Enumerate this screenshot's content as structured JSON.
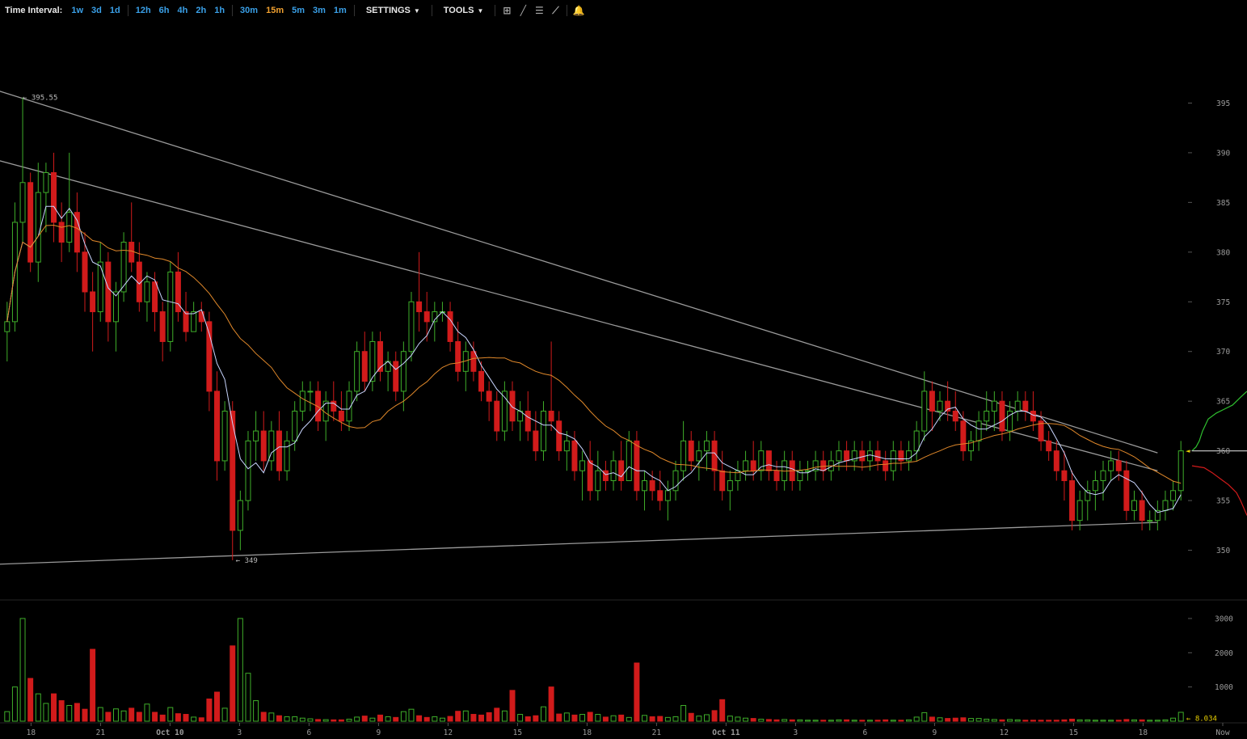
{
  "toolbar": {
    "time_interval_label": "Time Interval:",
    "intervals": [
      "1w",
      "3d",
      "1d",
      "12h",
      "6h",
      "4h",
      "2h",
      "1h",
      "30m",
      "15m",
      "5m",
      "3m",
      "1m"
    ],
    "active_interval": "15m",
    "settings_label": "SETTINGS",
    "tools_label": "TOOLS",
    "icons": [
      "crosshair-icon",
      "line-tool-icon",
      "hlines-icon",
      "fan-tool-icon",
      "bell-icon"
    ]
  },
  "colors": {
    "up": "#3fae2a",
    "down": "#d11b1b",
    "sma_fast": "#c9d6ff",
    "sma_slow": "#e0882a",
    "trendline": "#9a9a9a",
    "axis_text": "#9b9b9b",
    "depth_bid": "#2fbf2f",
    "depth_ask": "#d11b1b"
  },
  "chart_data": {
    "type": "candlestick",
    "price_axis": {
      "ticks": [
        395,
        390,
        385,
        380,
        375,
        370,
        365,
        360,
        355,
        350
      ],
      "ylim": [
        345,
        400
      ]
    },
    "volume_axis": {
      "ticks": [
        3000,
        2000,
        1000
      ],
      "ylim": [
        0,
        3400
      ]
    },
    "x_ticks": [
      "18",
      "21",
      "Oct 10",
      "3",
      "6",
      "9",
      "12",
      "15",
      "18",
      "21",
      "Oct 11",
      "3",
      "6",
      "9",
      "12",
      "15",
      "18",
      "Now"
    ],
    "annotations": {
      "high": "395.55",
      "low": "349",
      "last_price": "360",
      "last_volume": "8.034"
    },
    "candles": [
      [
        372,
        375,
        369,
        373,
        280
      ],
      [
        373,
        385,
        372,
        383,
        1000
      ],
      [
        383,
        395.55,
        381,
        387,
        3000
      ],
      [
        387,
        388,
        378,
        379,
        1250
      ],
      [
        379,
        389,
        377,
        386,
        800
      ],
      [
        386,
        389,
        382,
        388,
        520
      ],
      [
        388,
        390,
        381,
        383,
        800
      ],
      [
        383,
        385,
        379,
        381,
        600
      ],
      [
        381,
        390,
        380,
        384,
        460
      ],
      [
        384,
        386,
        378,
        380,
        520
      ],
      [
        380,
        382,
        374,
        376,
        350
      ],
      [
        376,
        378,
        370,
        374,
        2100
      ],
      [
        374,
        381,
        373,
        379,
        400
      ],
      [
        379,
        380,
        371,
        373,
        260
      ],
      [
        373,
        377,
        370,
        376,
        360
      ],
      [
        376,
        382,
        375,
        381,
        300
      ],
      [
        381,
        385,
        378,
        379,
        380
      ],
      [
        379,
        381,
        374,
        375,
        260
      ],
      [
        375,
        378,
        373,
        377,
        500
      ],
      [
        377,
        378,
        372,
        374,
        260
      ],
      [
        374,
        375,
        369,
        371,
        180
      ],
      [
        371,
        379,
        370,
        378,
        400
      ],
      [
        378,
        380,
        373,
        374,
        220
      ],
      [
        374,
        376,
        371,
        372,
        200
      ],
      [
        372,
        375,
        372,
        374,
        120
      ],
      [
        374,
        375,
        372,
        373,
        100
      ],
      [
        373,
        374,
        364,
        366,
        650
      ],
      [
        366,
        368,
        357,
        359,
        850
      ],
      [
        359,
        365,
        358,
        364,
        380
      ],
      [
        364,
        365,
        349,
        352,
        2200
      ],
      [
        352,
        356,
        350,
        355,
        3000
      ],
      [
        355,
        362,
        354,
        361,
        1400
      ],
      [
        361,
        364,
        359,
        362,
        600
      ],
      [
        362,
        364,
        358,
        359,
        260
      ],
      [
        359,
        363,
        358,
        362,
        240
      ],
      [
        362,
        364,
        357,
        358,
        160
      ],
      [
        358,
        362,
        357,
        361,
        130
      ],
      [
        361,
        365,
        360,
        364,
        130
      ],
      [
        364,
        367,
        363,
        366,
        90
      ],
      [
        366,
        367,
        364,
        366,
        70
      ],
      [
        366,
        367,
        362,
        363,
        50
      ],
      [
        363,
        366,
        361,
        365,
        45
      ],
      [
        365,
        367,
        363,
        364,
        40
      ],
      [
        364,
        366,
        362,
        363,
        40
      ],
      [
        363,
        367,
        362,
        366,
        60
      ],
      [
        366,
        371,
        365,
        370,
        120
      ],
      [
        370,
        372,
        366,
        367,
        150
      ],
      [
        367,
        372,
        366,
        371,
        90
      ],
      [
        371,
        372,
        367,
        368,
        180
      ],
      [
        368,
        370,
        366,
        369,
        130
      ],
      [
        369,
        370,
        365,
        366,
        110
      ],
      [
        366,
        371,
        364,
        370,
        280
      ],
      [
        370,
        376,
        369,
        375,
        350
      ],
      [
        375,
        380,
        372,
        374,
        160
      ],
      [
        374,
        376,
        371,
        373,
        110
      ],
      [
        373,
        375,
        371,
        374,
        130
      ],
      [
        374,
        375,
        373,
        374,
        90
      ],
      [
        374,
        375,
        370,
        371,
        140
      ],
      [
        371,
        373,
        367,
        368,
        290
      ],
      [
        368,
        371,
        366,
        370,
        300
      ],
      [
        370,
        371,
        367,
        368,
        200
      ],
      [
        368,
        369,
        365,
        366,
        180
      ],
      [
        366,
        367,
        363,
        365,
        250
      ],
      [
        365,
        366,
        361,
        362,
        380
      ],
      [
        362,
        367,
        361,
        366,
        300
      ],
      [
        366,
        367,
        362,
        363,
        900
      ],
      [
        363,
        365,
        361,
        364,
        200
      ],
      [
        364,
        366,
        361,
        362,
        130
      ],
      [
        362,
        364,
        359,
        360,
        160
      ],
      [
        360,
        365,
        359,
        364,
        420
      ],
      [
        364,
        371,
        362,
        363,
        1000
      ],
      [
        363,
        364,
        359,
        360,
        210
      ],
      [
        360,
        362,
        358,
        361,
        240
      ],
      [
        361,
        362,
        357,
        358,
        180
      ],
      [
        358,
        360,
        355,
        359,
        200
      ],
      [
        359,
        361,
        355,
        356,
        260
      ],
      [
        356,
        360,
        355,
        358,
        200
      ],
      [
        358,
        359,
        356,
        357,
        120
      ],
      [
        357,
        360,
        356,
        359,
        160
      ],
      [
        359,
        361,
        356,
        357,
        180
      ],
      [
        357,
        362,
        357,
        361,
        110
      ],
      [
        361,
        362,
        355,
        356,
        1700
      ],
      [
        356,
        358,
        354,
        357,
        170
      ],
      [
        357,
        358,
        355,
        356,
        130
      ],
      [
        356,
        358,
        354,
        355,
        140
      ],
      [
        355,
        357,
        353,
        356,
        110
      ],
      [
        356,
        359,
        355,
        358,
        130
      ],
      [
        358,
        363,
        357,
        361,
        460
      ],
      [
        361,
        362,
        358,
        359,
        230
      ],
      [
        359,
        361,
        357,
        360,
        150
      ],
      [
        360,
        362,
        358,
        361,
        190
      ],
      [
        361,
        362,
        356,
        358,
        310
      ],
      [
        358,
        360,
        355,
        356,
        630
      ],
      [
        356,
        358,
        354,
        357,
        150
      ],
      [
        357,
        359,
        356,
        358,
        120
      ],
      [
        358,
        360,
        357,
        359,
        90
      ],
      [
        359,
        361,
        357,
        358,
        80
      ],
      [
        358,
        361,
        357,
        360,
        60
      ],
      [
        360,
        360,
        357,
        358,
        50
      ],
      [
        358,
        359,
        356,
        357,
        40
      ],
      [
        357,
        360,
        356,
        359,
        50
      ],
      [
        359,
        360,
        356,
        357,
        40
      ],
      [
        357,
        359,
        356,
        358,
        40
      ],
      [
        358,
        359,
        357,
        358,
        30
      ],
      [
        358,
        360,
        357,
        359,
        30
      ],
      [
        359,
        360,
        357,
        358,
        30
      ],
      [
        358,
        360,
        357,
        359,
        30
      ],
      [
        359,
        361,
        358,
        360,
        40
      ],
      [
        360,
        361,
        358,
        359,
        40
      ],
      [
        359,
        361,
        358,
        360,
        30
      ],
      [
        360,
        361,
        358,
        359,
        30
      ],
      [
        359,
        361,
        358,
        360,
        30
      ],
      [
        360,
        361,
        358,
        359,
        30
      ],
      [
        359,
        360,
        357,
        358,
        40
      ],
      [
        358,
        361,
        357,
        360,
        30
      ],
      [
        360,
        361,
        358,
        359,
        30
      ],
      [
        359,
        361,
        358,
        360,
        40
      ],
      [
        360,
        363,
        359,
        362,
        120
      ],
      [
        362,
        368,
        361,
        366,
        250
      ],
      [
        366,
        367,
        362,
        364,
        120
      ],
      [
        364,
        366,
        363,
        365,
        100
      ],
      [
        365,
        367,
        363,
        364,
        80
      ],
      [
        364,
        366,
        362,
        363,
        90
      ],
      [
        363,
        364,
        359,
        360,
        100
      ],
      [
        360,
        362,
        359,
        361,
        80
      ],
      [
        361,
        364,
        360,
        363,
        80
      ],
      [
        363,
        366,
        362,
        364,
        60
      ],
      [
        364,
        366,
        362,
        365,
        50
      ],
      [
        365,
        366,
        361,
        362,
        40
      ],
      [
        362,
        365,
        361,
        364,
        50
      ],
      [
        364,
        366,
        363,
        365,
        40
      ],
      [
        365,
        366,
        363,
        364,
        30
      ],
      [
        364,
        366,
        362,
        363,
        30
      ],
      [
        363,
        364,
        360,
        361,
        30
      ],
      [
        361,
        362,
        359,
        360,
        30
      ],
      [
        360,
        361,
        357,
        358,
        30
      ],
      [
        358,
        360,
        355,
        357,
        40
      ],
      [
        357,
        358,
        352,
        353,
        60
      ],
      [
        353,
        356,
        352,
        355,
        40
      ],
      [
        355,
        357,
        353,
        356,
        40
      ],
      [
        356,
        358,
        354,
        357,
        30
      ],
      [
        357,
        359,
        355,
        358,
        30
      ],
      [
        358,
        360,
        357,
        359,
        30
      ],
      [
        359,
        360,
        357,
        358,
        30
      ],
      [
        358,
        359,
        353,
        354,
        50
      ],
      [
        354,
        356,
        353,
        355,
        40
      ],
      [
        355,
        356,
        352,
        353,
        40
      ],
      [
        353,
        354,
        352,
        353,
        30
      ],
      [
        353,
        355,
        352,
        354,
        30
      ],
      [
        354,
        356,
        353,
        355,
        40
      ],
      [
        355,
        357,
        354,
        356,
        90
      ],
      [
        356,
        361,
        355,
        360,
        260
      ]
    ]
  }
}
